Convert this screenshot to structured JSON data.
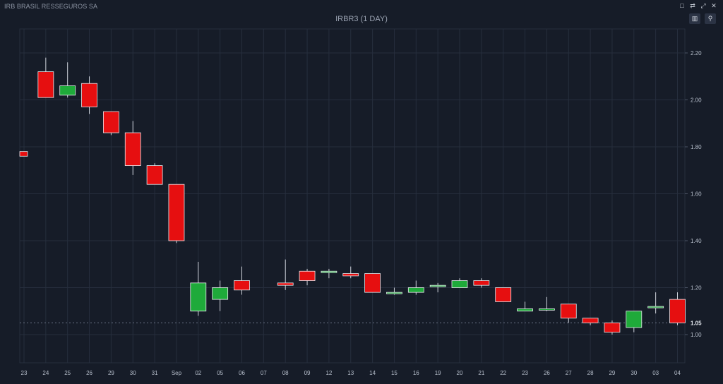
{
  "window": {
    "title": "IRB BRASIL RESSEGUROS SA",
    "toolbar_icons": [
      "window-icon",
      "settings-icon",
      "fullscreen-icon",
      "close-icon"
    ]
  },
  "chart_header": {
    "title": "IRBR3 (1 DAY)",
    "buttons": [
      {
        "name": "lock-button",
        "icon": "lock-icon"
      },
      {
        "name": "zoom-button",
        "icon": "zoom-icon"
      }
    ]
  },
  "colors": {
    "background": "#161c28",
    "grid": "#262e3d",
    "up": "#1faa3a",
    "down": "#e60f10",
    "wick": "#d0d4dc",
    "price_line": "#6b7384"
  },
  "chart_data": {
    "type": "candlestick",
    "title": "IRBR3 (1 DAY)",
    "y_ticks": [
      1.0,
      1.2,
      1.4,
      1.6,
      1.8,
      2.0,
      2.2
    ],
    "ylim": [
      0.88,
      2.3
    ],
    "last_price": 1.05,
    "last_price_label": "1.05",
    "grid": true,
    "categories": [
      "23",
      "24",
      "25",
      "26",
      "29",
      "30",
      "31",
      "Sep",
      "02",
      "05",
      "06",
      "07",
      "08",
      "09",
      "12",
      "13",
      "14",
      "15",
      "16",
      "19",
      "20",
      "21",
      "22",
      "23",
      "26",
      "27",
      "28",
      "29",
      "30",
      "03",
      "04"
    ],
    "candles": [
      {
        "x": "23",
        "open": 1.78,
        "high": 1.78,
        "low": 1.76,
        "close": 1.76
      },
      {
        "x": "24",
        "open": 2.12,
        "high": 2.18,
        "low": 2.01,
        "close": 2.01
      },
      {
        "x": "25",
        "open": 2.02,
        "high": 2.16,
        "low": 2.01,
        "close": 2.06
      },
      {
        "x": "26",
        "open": 2.07,
        "high": 2.1,
        "low": 1.94,
        "close": 1.97
      },
      {
        "x": "29",
        "open": 1.95,
        "high": 1.95,
        "low": 1.85,
        "close": 1.86
      },
      {
        "x": "30",
        "open": 1.86,
        "high": 1.91,
        "low": 1.68,
        "close": 1.72
      },
      {
        "x": "31",
        "open": 1.72,
        "high": 1.73,
        "low": 1.64,
        "close": 1.64
      },
      {
        "x": "Sep",
        "open": 1.64,
        "high": 1.64,
        "low": 1.39,
        "close": 1.4
      },
      {
        "x": "02",
        "open": 1.1,
        "high": 1.31,
        "low": 1.08,
        "close": 1.22
      },
      {
        "x": "05",
        "open": 1.15,
        "high": 1.23,
        "low": 1.1,
        "close": 1.2
      },
      {
        "x": "06",
        "open": 1.23,
        "high": 1.29,
        "low": 1.17,
        "close": 1.19
      },
      {
        "x": "07",
        "open": null,
        "high": null,
        "low": null,
        "close": null
      },
      {
        "x": "08",
        "open": 1.22,
        "high": 1.32,
        "low": 1.19,
        "close": 1.21
      },
      {
        "x": "09",
        "open": 1.27,
        "high": 1.28,
        "low": 1.21,
        "close": 1.23
      },
      {
        "x": "12",
        "open": 1.27,
        "high": 1.28,
        "low": 1.24,
        "close": 1.27
      },
      {
        "x": "13",
        "open": 1.26,
        "high": 1.29,
        "low": 1.24,
        "close": 1.25
      },
      {
        "x": "14",
        "open": 1.26,
        "high": 1.26,
        "low": 1.18,
        "close": 1.18
      },
      {
        "x": "15",
        "open": 1.18,
        "high": 1.2,
        "low": 1.17,
        "close": 1.18
      },
      {
        "x": "16",
        "open": 1.18,
        "high": 1.23,
        "low": 1.17,
        "close": 1.2
      },
      {
        "x": "19",
        "open": 1.21,
        "high": 1.22,
        "low": 1.18,
        "close": 1.21
      },
      {
        "x": "20",
        "open": 1.2,
        "high": 1.24,
        "low": 1.2,
        "close": 1.23
      },
      {
        "x": "21",
        "open": 1.23,
        "high": 1.24,
        "low": 1.2,
        "close": 1.21
      },
      {
        "x": "22",
        "open": 1.2,
        "high": 1.2,
        "low": 1.14,
        "close": 1.14
      },
      {
        "x": "23",
        "open": 1.1,
        "high": 1.14,
        "low": 1.1,
        "close": 1.11
      },
      {
        "x": "26",
        "open": 1.11,
        "high": 1.16,
        "low": 1.1,
        "close": 1.11
      },
      {
        "x": "27",
        "open": 1.13,
        "high": 1.13,
        "low": 1.05,
        "close": 1.07
      },
      {
        "x": "28",
        "open": 1.07,
        "high": 1.07,
        "low": 1.04,
        "close": 1.05
      },
      {
        "x": "29",
        "open": 1.05,
        "high": 1.06,
        "low": 1.0,
        "close": 1.01
      },
      {
        "x": "30",
        "open": 1.03,
        "high": 1.1,
        "low": 1.01,
        "close": 1.1
      },
      {
        "x": "03",
        "open": 1.12,
        "high": 1.18,
        "low": 1.09,
        "close": 1.12
      },
      {
        "x": "04",
        "open": 1.15,
        "high": 1.18,
        "low": 1.04,
        "close": 1.05
      }
    ]
  }
}
